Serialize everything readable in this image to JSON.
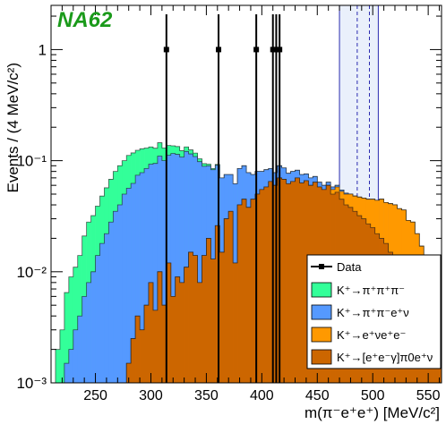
{
  "chart_data": {
    "type": "histogram",
    "logo": "NA62",
    "logo_color": "#1a9a1a",
    "xlabel": "m(π⁻e⁺e⁺) [MeV/c²]",
    "ylabel": "Events / (4 MeV/c²)",
    "xlim": [
      210,
      562
    ],
    "ylim": [
      0.001,
      2.5
    ],
    "yscale": "log",
    "xticks": [
      250,
      300,
      350,
      400,
      450,
      500,
      550
    ],
    "yticks": [
      {
        "value": 0.001,
        "label": "10⁻³"
      },
      {
        "value": 0.01,
        "label": "10⁻²"
      },
      {
        "value": 0.1,
        "label": "10⁻¹"
      },
      {
        "value": 1,
        "label": "1"
      }
    ],
    "bin_width": 4,
    "bin_start": 214,
    "signal_region": {
      "x": [
        470,
        505
      ],
      "dashed_lines": [
        486,
        497
      ]
    },
    "legend": {
      "placement": "bottom-right",
      "entries": [
        {
          "label": "Data",
          "style": "marker"
        },
        {
          "label": "K⁺→π⁺π⁺π⁻",
          "color": "#33ff99"
        },
        {
          "label": "K⁺→π⁺π⁻e⁺ν",
          "color": "#5599ff"
        },
        {
          "label": "K⁺→e⁺νe⁺e⁻",
          "color": "#ff9900"
        },
        {
          "label": "K⁺→[e⁺e⁻γ]π0e⁺ν",
          "color": "#cc6600"
        }
      ]
    },
    "data_points": [
      {
        "x": 314,
        "y": 1
      },
      {
        "x": 361,
        "y": 1
      },
      {
        "x": 395,
        "y": 1
      },
      {
        "x": 410,
        "y": 1
      },
      {
        "x": 413,
        "y": 1
      },
      {
        "x": 416,
        "y": 1
      }
    ],
    "series": [
      {
        "name": "K⁺→[e⁺e⁻γ]π0e⁺ν",
        "color": "#cc6600",
        "values": [
          0,
          0,
          0,
          0,
          0,
          0,
          0,
          0,
          0,
          0,
          0,
          0,
          0,
          0,
          0,
          0,
          0.0015,
          0.0025,
          0.004,
          0.003,
          0.005,
          0.008,
          0.0045,
          0.01,
          0.005,
          0.012,
          0.006,
          0.009,
          0.008,
          0.011,
          0.015,
          0.014,
          0.008,
          0.014,
          0.02,
          0.013,
          0.026,
          0.015,
          0.03,
          0.035,
          0.012,
          0.04,
          0.045,
          0.038,
          0.045,
          0.05,
          0.055,
          0.058,
          0.065,
          0.06,
          0.07,
          0.068,
          0.062,
          0.065,
          0.07,
          0.063,
          0.066,
          0.06,
          0.064,
          0.058,
          0.055,
          0.06,
          0.05,
          0.052,
          0.045,
          0.04,
          0.038,
          0.035,
          0.032,
          0.03,
          0.027,
          0.025,
          0.022,
          0.02,
          0.018,
          0.015,
          0.013,
          0.012,
          0.01,
          0.009,
          0.008,
          0.006,
          0.005,
          0.0035,
          0.0025,
          0.002,
          0.0015
        ]
      },
      {
        "name": "K⁺→e⁺νe⁺e⁻",
        "color": "#ff9900",
        "values": [
          0,
          0,
          0,
          0,
          0,
          0,
          0,
          0,
          0,
          0,
          0,
          0,
          0,
          0,
          0,
          0,
          0,
          0,
          0,
          0,
          0,
          0,
          0,
          0,
          0,
          0,
          0,
          0,
          0,
          0,
          0,
          0,
          0,
          0,
          0,
          0,
          0,
          0,
          0,
          0,
          0,
          0,
          0,
          0,
          0,
          0,
          0,
          0,
          0,
          0,
          0,
          0,
          0,
          0,
          0,
          0,
          0,
          0,
          0,
          0,
          0,
          0,
          0.005,
          0.006,
          0.008,
          0.01,
          0.012,
          0.013,
          0.015,
          0.016,
          0.018,
          0.02,
          0.022,
          0.025,
          0.024,
          0.026,
          0.027,
          0.025,
          0.026,
          0.02,
          0.02,
          0.016,
          0.012,
          0.01,
          0.008,
          0.007,
          0.005
        ]
      },
      {
        "name": "K⁺→π⁺π⁻e⁺ν",
        "color": "#5599ff",
        "values": [
          0,
          0,
          0.0015,
          0.002,
          0.003,
          0.004,
          0.006,
          0.008,
          0.01,
          0.014,
          0.018,
          0.022,
          0.028,
          0.035,
          0.04,
          0.05,
          0.055,
          0.06,
          0.07,
          0.075,
          0.08,
          0.085,
          0.09,
          0.1,
          0.095,
          0.1,
          0.11,
          0.105,
          0.1,
          0.11,
          0.1,
          0.095,
          0.09,
          0.075,
          0.07,
          0.07,
          0.065,
          0.055,
          0.045,
          0.04,
          0.05,
          0.045,
          0.045,
          0.04,
          0.03,
          0.03,
          0.025,
          0.025,
          0.02,
          0.018,
          0.02,
          0.018,
          0.015,
          0.015,
          0.012,
          0.012,
          0.01,
          0.01,
          0.008,
          0.006,
          0.005,
          0.004,
          0.003,
          0.002,
          0.0015,
          0.001,
          0,
          0,
          0,
          0,
          0,
          0,
          0,
          0,
          0,
          0,
          0,
          0,
          0,
          0,
          0,
          0,
          0,
          0,
          0,
          0,
          0
        ]
      },
      {
        "name": "K⁺→π⁺π⁺π⁻",
        "color": "#33ff99",
        "values": [
          0.002,
          0.003,
          0.005,
          0.007,
          0.008,
          0.01,
          0.015,
          0.02,
          0.022,
          0.025,
          0.03,
          0.035,
          0.04,
          0.045,
          0.05,
          0.05,
          0.055,
          0.055,
          0.05,
          0.05,
          0.045,
          0.04,
          0.035,
          0.035,
          0.03,
          0.025,
          0.02,
          0.02,
          0.015,
          0.012,
          0.01,
          0.008,
          0.006,
          0.005,
          0.003,
          0.002,
          0.0015,
          0,
          0,
          0,
          0,
          0,
          0,
          0,
          0,
          0,
          0,
          0,
          0,
          0,
          0,
          0,
          0,
          0,
          0,
          0,
          0,
          0,
          0,
          0,
          0,
          0,
          0,
          0,
          0,
          0,
          0,
          0,
          0,
          0,
          0,
          0,
          0,
          0,
          0,
          0,
          0,
          0,
          0,
          0,
          0,
          0,
          0,
          0,
          0,
          0,
          0
        ]
      }
    ]
  }
}
